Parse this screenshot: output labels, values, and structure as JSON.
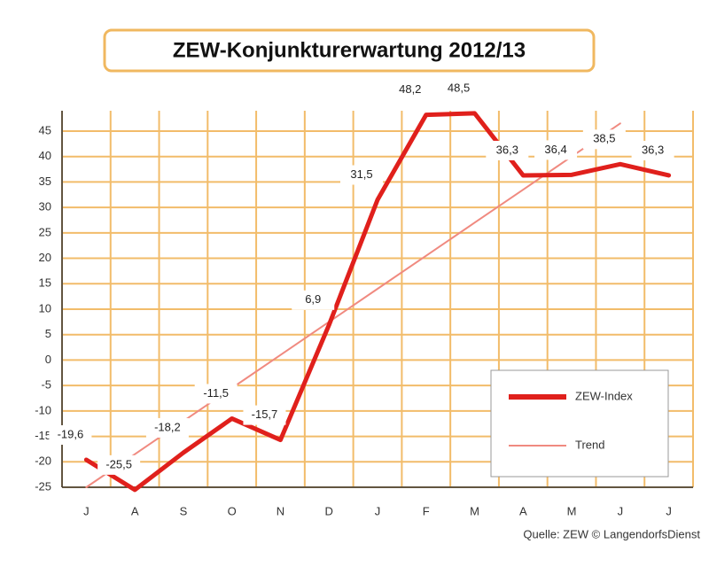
{
  "chart_data": {
    "type": "line",
    "title": "ZEW-Konjunkturerwartung 2012/13",
    "categories": [
      "J",
      "A",
      "S",
      "O",
      "N",
      "D",
      "J",
      "F",
      "M",
      "A",
      "M",
      "J",
      "J"
    ],
    "series": [
      {
        "name": "ZEW-Index",
        "color": "#e0201c",
        "values": [
          -19.6,
          -25.5,
          -18.2,
          -11.5,
          -15.7,
          6.9,
          31.5,
          48.2,
          48.5,
          36.3,
          36.4,
          38.5,
          36.3
        ],
        "value_labels": [
          "-19,6",
          "-25,5",
          "-18,2",
          "-11,5",
          "-15,7",
          "6,9",
          "31,5",
          "48,2",
          "48,5",
          "36,3",
          "36,4",
          "38,5",
          "36,3"
        ]
      },
      {
        "name": "Trend",
        "color": "#f08a80",
        "values": [
          -25,
          -18.5,
          -12,
          -5.5,
          1,
          7.5,
          14,
          20.5,
          27,
          33.5,
          40,
          46.5,
          null
        ]
      }
    ],
    "ylim": [
      -25,
      49
    ],
    "yticks": [
      -25,
      -20,
      -15,
      -10,
      -5,
      0,
      5,
      10,
      15,
      20,
      25,
      30,
      35,
      40,
      45
    ],
    "grid": true,
    "legend": "lower right",
    "source": "Quelle: ZEW © LangendorfsDienst"
  }
}
